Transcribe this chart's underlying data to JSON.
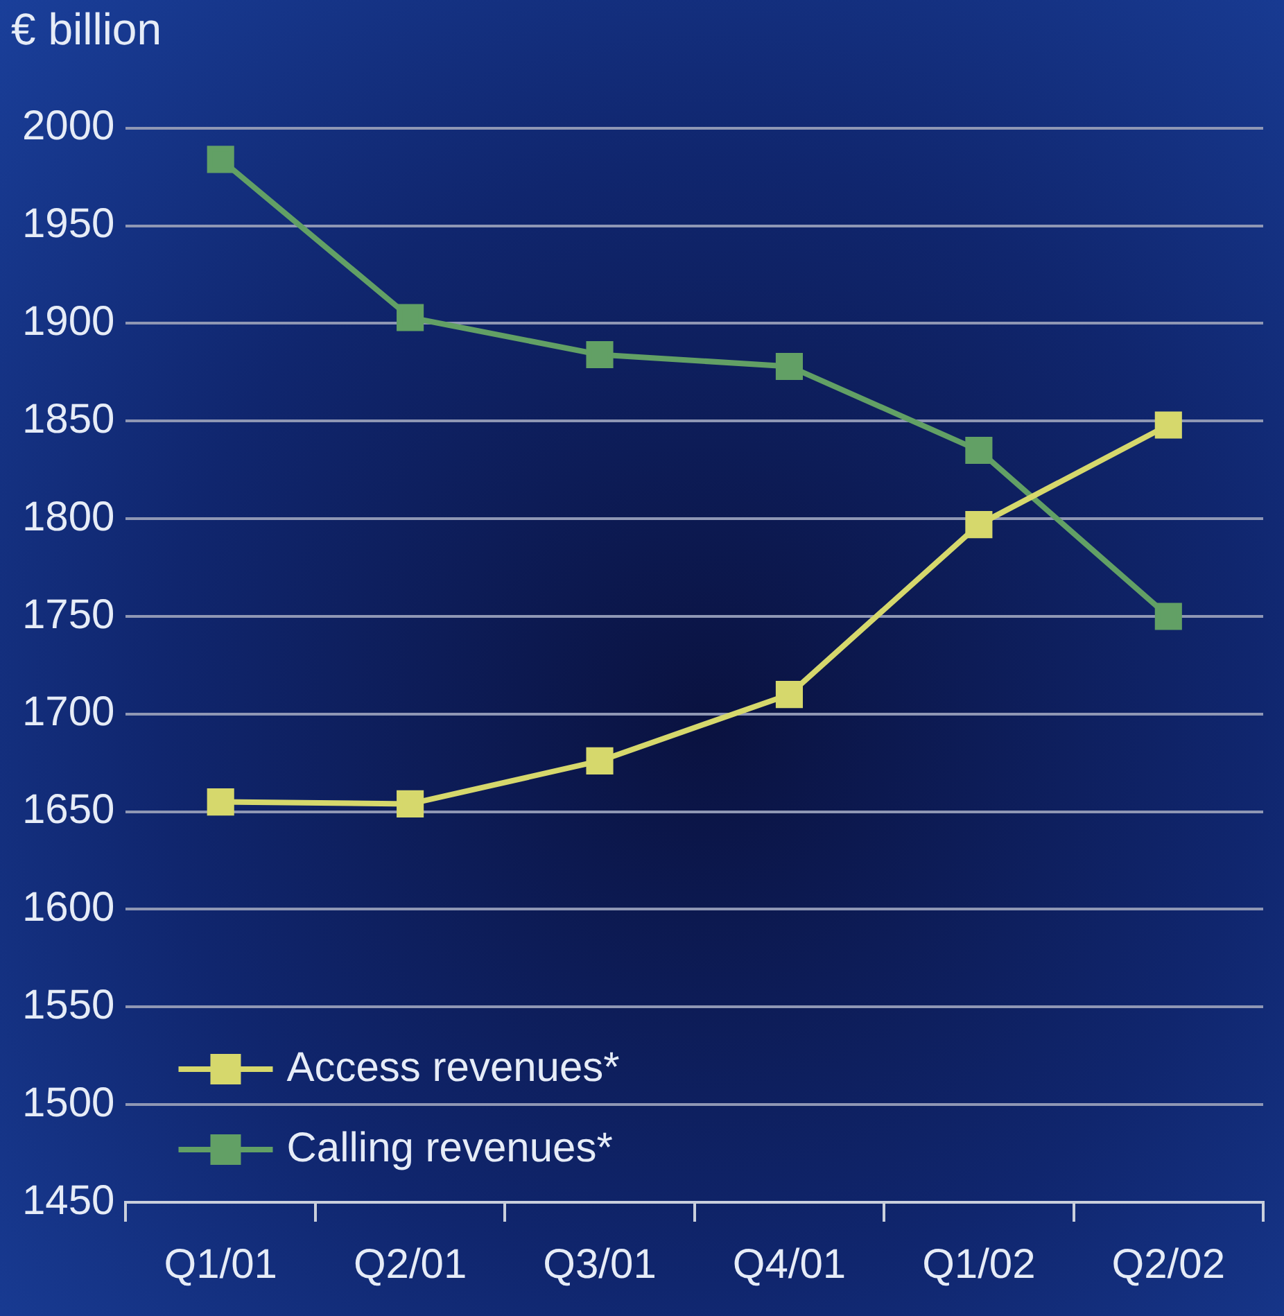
{
  "chart_data": {
    "type": "line",
    "ylabel": "€ billion",
    "categories": [
      "Q1/01",
      "Q2/01",
      "Q3/01",
      "Q4/01",
      "Q1/02",
      "Q2/02"
    ],
    "series": [
      {
        "name": "Access revenues*",
        "color": "#d6d86c",
        "values": [
          1655,
          1654,
          1676,
          1710,
          1797,
          1848
        ]
      },
      {
        "name": "Calling revenues*",
        "color": "#62a065",
        "values": [
          1984,
          1903,
          1884,
          1878,
          1835,
          1750
        ]
      }
    ],
    "ylim": [
      1450,
      2000
    ],
    "yticks": [
      1450,
      1500,
      1550,
      1600,
      1650,
      1700,
      1750,
      1800,
      1850,
      1900,
      1950,
      2000
    ],
    "grid": "y",
    "legend": "bottom left",
    "marker": "square",
    "line_style": "solid"
  }
}
